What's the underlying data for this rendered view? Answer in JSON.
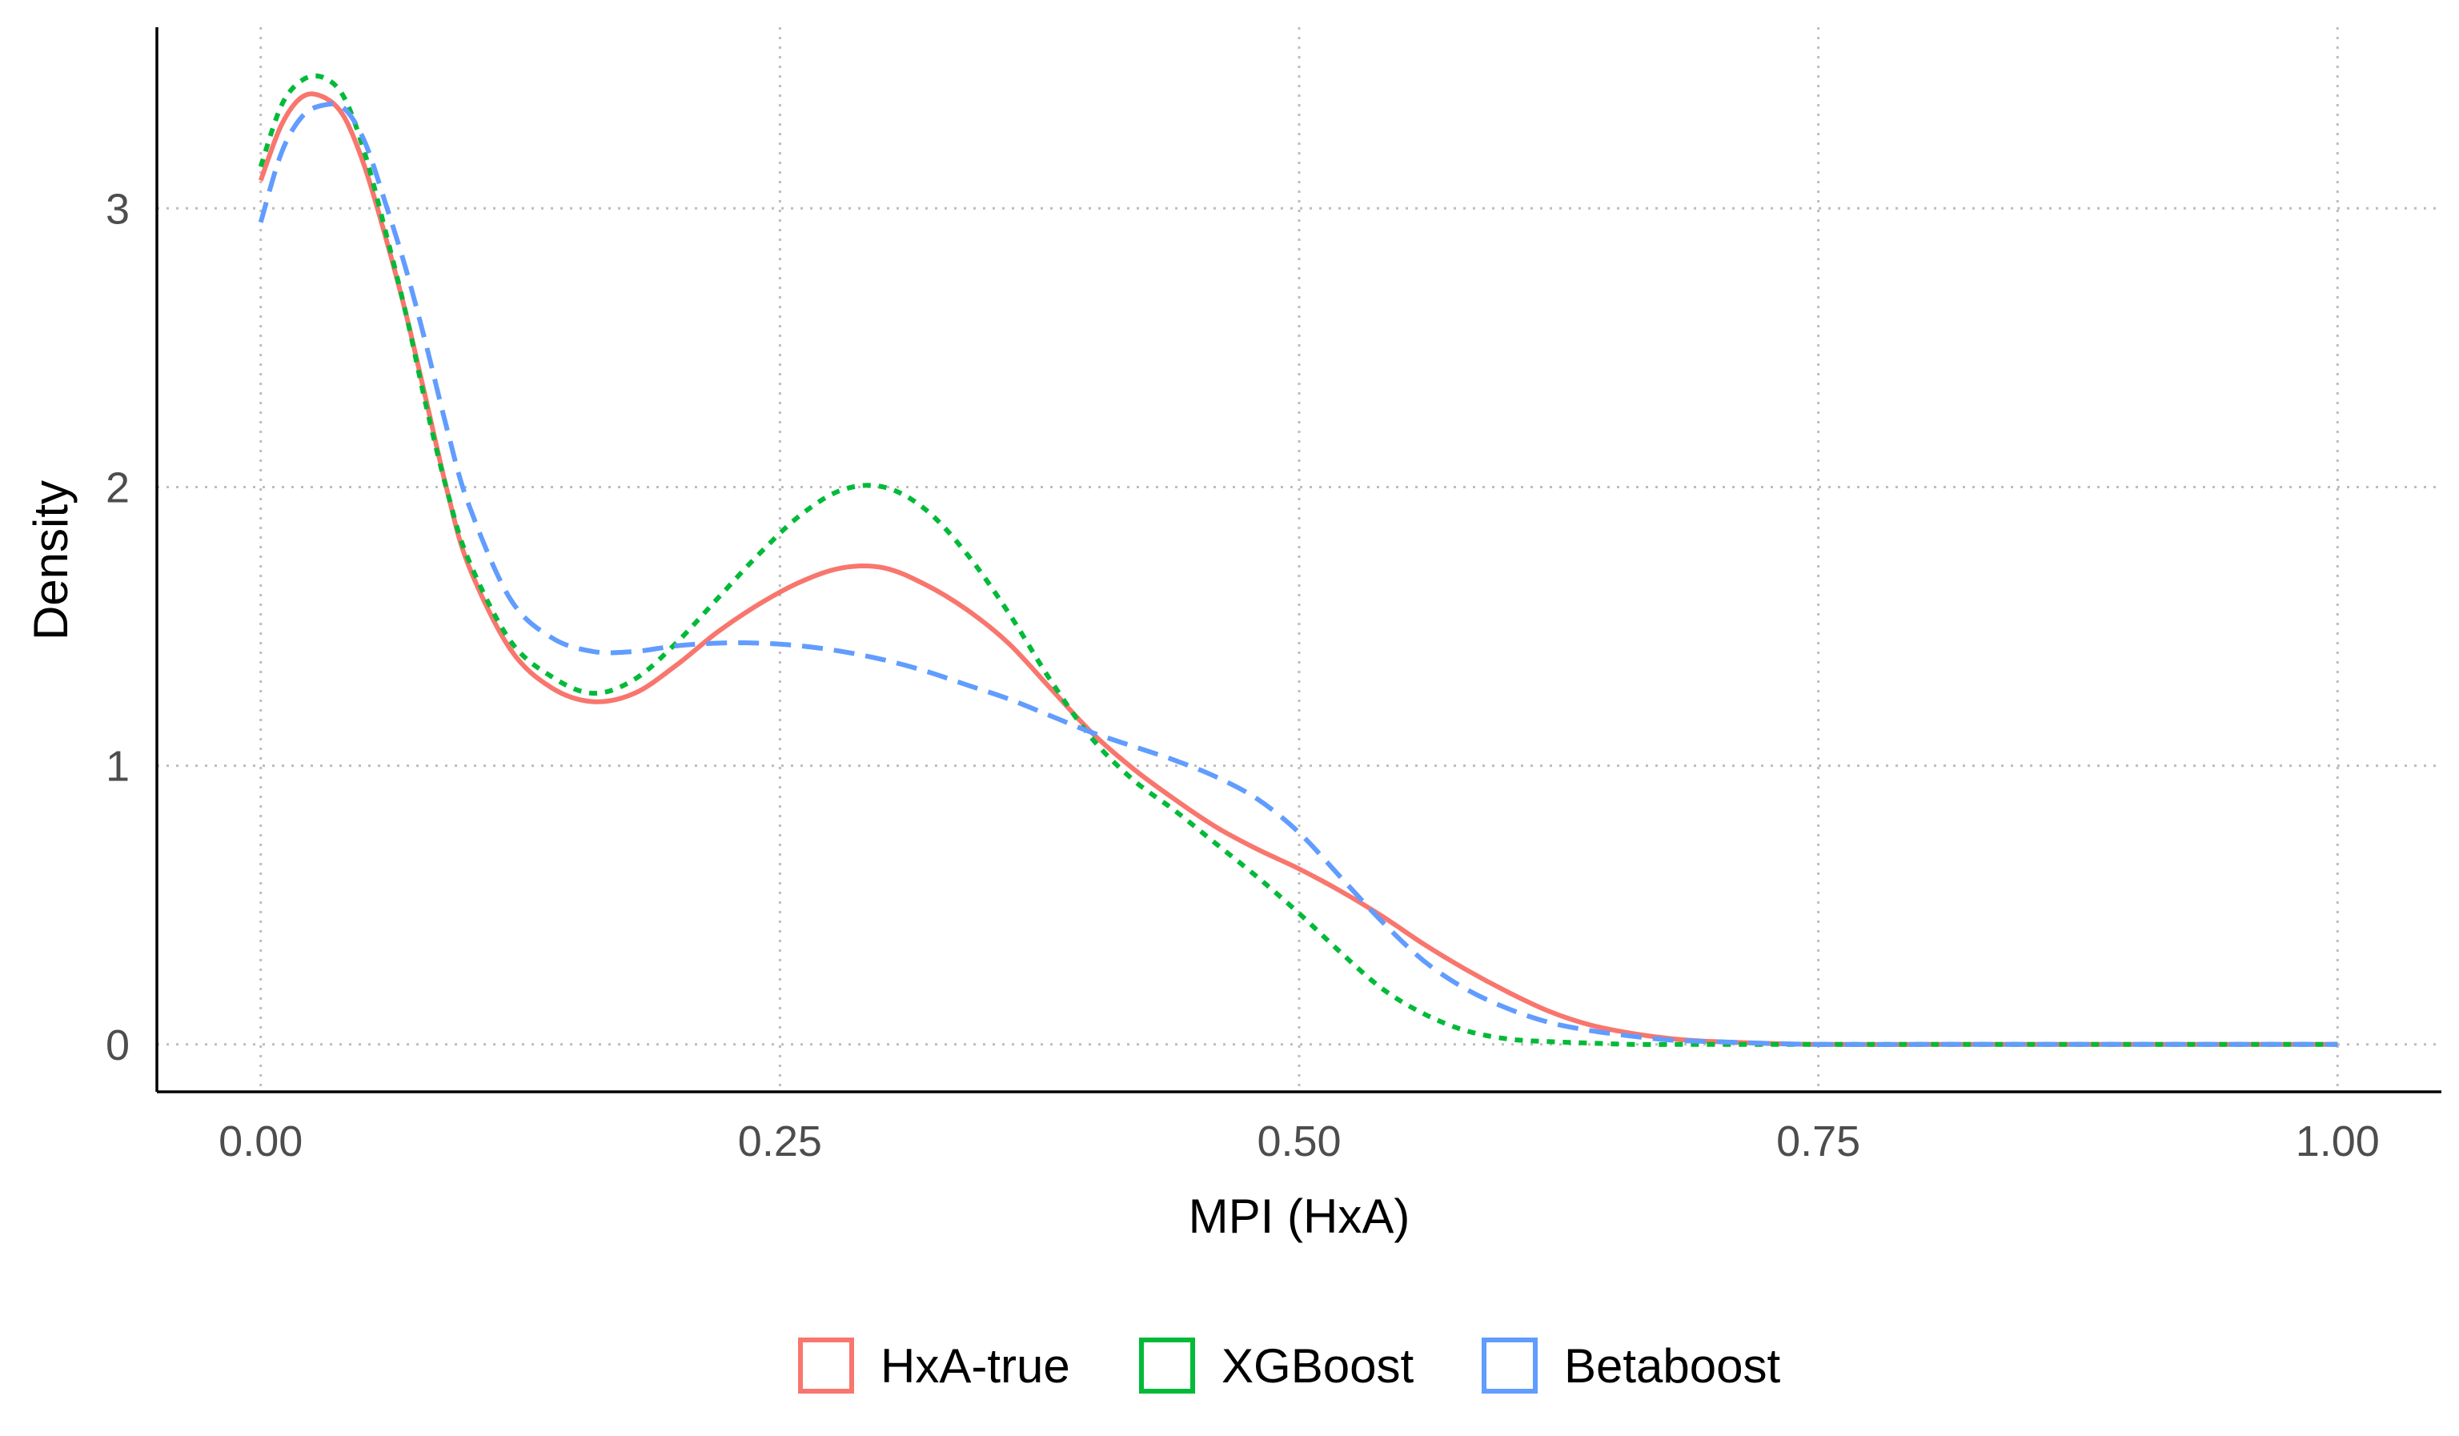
{
  "chart_data": {
    "type": "line",
    "title": "",
    "xlabel": "MPI (HxA)",
    "ylabel": "Density",
    "xlim": [
      -0.05,
      1.05
    ],
    "ylim": [
      -0.17,
      3.65
    ],
    "x_ticks": [
      0.0,
      0.25,
      0.5,
      0.75,
      1.0
    ],
    "x_tick_labels": [
      "0.00",
      "0.25",
      "0.50",
      "0.75",
      "1.00"
    ],
    "y_ticks": [
      0,
      1,
      2,
      3
    ],
    "y_tick_labels": [
      "0",
      "1",
      "2",
      "3"
    ],
    "grid": true,
    "legend_position": "bottom",
    "x": [
      0.0,
      0.01,
      0.02,
      0.03,
      0.04,
      0.05,
      0.06,
      0.07,
      0.08,
      0.09,
      0.1,
      0.12,
      0.14,
      0.16,
      0.18,
      0.2,
      0.22,
      0.24,
      0.26,
      0.28,
      0.3,
      0.32,
      0.34,
      0.36,
      0.38,
      0.4,
      0.42,
      0.44,
      0.46,
      0.48,
      0.5,
      0.52,
      0.54,
      0.56,
      0.58,
      0.6,
      0.62,
      0.64,
      0.66,
      0.68,
      0.7,
      0.72,
      0.75,
      0.8,
      0.85,
      0.9,
      0.95,
      1.0
    ],
    "series": [
      {
        "name": "HxA-true",
        "color": "#F8766D",
        "dash": "solid",
        "values": [
          3.1,
          3.3,
          3.4,
          3.4,
          3.33,
          3.15,
          2.9,
          2.62,
          2.3,
          1.98,
          1.72,
          1.42,
          1.28,
          1.23,
          1.26,
          1.36,
          1.48,
          1.58,
          1.66,
          1.71,
          1.71,
          1.65,
          1.56,
          1.44,
          1.28,
          1.12,
          0.99,
          0.88,
          0.78,
          0.7,
          0.63,
          0.55,
          0.46,
          0.36,
          0.27,
          0.19,
          0.12,
          0.07,
          0.04,
          0.02,
          0.01,
          0.005,
          0.0,
          0.0,
          0.0,
          0.0,
          0.0,
          0.0
        ]
      },
      {
        "name": "XGBoost",
        "color": "#00BA38",
        "dash": "short",
        "values": [
          3.15,
          3.37,
          3.46,
          3.47,
          3.4,
          3.2,
          2.92,
          2.62,
          2.28,
          1.98,
          1.74,
          1.45,
          1.32,
          1.26,
          1.31,
          1.44,
          1.6,
          1.76,
          1.9,
          1.99,
          2.0,
          1.92,
          1.76,
          1.55,
          1.31,
          1.1,
          0.95,
          0.84,
          0.72,
          0.6,
          0.47,
          0.33,
          0.2,
          0.11,
          0.05,
          0.02,
          0.01,
          0.005,
          0.0,
          0.0,
          0.0,
          0.0,
          0.0,
          0.0,
          0.0,
          0.0,
          0.0,
          0.0
        ]
      },
      {
        "name": "Betaboost",
        "color": "#619CFF",
        "dash": "long",
        "values": [
          2.95,
          3.2,
          3.33,
          3.37,
          3.36,
          3.24,
          3.02,
          2.78,
          2.5,
          2.2,
          1.94,
          1.6,
          1.46,
          1.41,
          1.41,
          1.43,
          1.44,
          1.44,
          1.43,
          1.41,
          1.38,
          1.34,
          1.29,
          1.24,
          1.18,
          1.12,
          1.07,
          1.02,
          0.96,
          0.88,
          0.76,
          0.6,
          0.44,
          0.3,
          0.2,
          0.13,
          0.08,
          0.05,
          0.03,
          0.015,
          0.01,
          0.005,
          0.0,
          0.0,
          0.0,
          0.0,
          0.0,
          0.0
        ]
      }
    ]
  }
}
